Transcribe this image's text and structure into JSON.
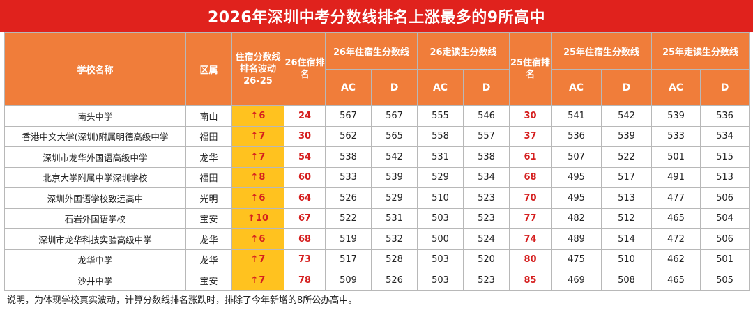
{
  "title": "2026年深圳中考分数线排名上涨最多的9所高中",
  "headers": {
    "school": "学校名称",
    "district": "区属",
    "fluctuation": "住宿分数线排名波动26-25",
    "rank26": "26住宿排名",
    "group26_board": "26年住宿生分数线",
    "group26_day": "26走读生分数线",
    "rank25": "25住宿排名",
    "group25_board": "25年住宿生分数线",
    "group25_day": "25年走读生分数线",
    "ac": "AC",
    "d": "D"
  },
  "arrow": "↑",
  "colors": {
    "title_bg": "#e0221d",
    "header_bg": "#f07d3a",
    "fluct_bg": "#ffc21f",
    "rank_text": "#d51f1f"
  },
  "rows": [
    {
      "school": "南头中学",
      "district": "南山",
      "change": "6",
      "rank26": "24",
      "b26_ac": "567",
      "b26_d": "567",
      "d26_ac": "555",
      "d26_d": "546",
      "rank25": "30",
      "b25_ac": "541",
      "b25_d": "542",
      "d25_ac": "539",
      "d25_d": "536"
    },
    {
      "school": "香港中文大学(深圳)附属明德高级中学",
      "district": "福田",
      "change": "7",
      "rank26": "30",
      "b26_ac": "562",
      "b26_d": "565",
      "d26_ac": "558",
      "d26_d": "557",
      "rank25": "37",
      "b25_ac": "536",
      "b25_d": "539",
      "d25_ac": "533",
      "d25_d": "534"
    },
    {
      "school": "深圳市龙华外国语高级中学",
      "district": "龙华",
      "change": "7",
      "rank26": "54",
      "b26_ac": "538",
      "b26_d": "542",
      "d26_ac": "531",
      "d26_d": "538",
      "rank25": "61",
      "b25_ac": "507",
      "b25_d": "522",
      "d25_ac": "501",
      "d25_d": "515"
    },
    {
      "school": "北京大学附属中学深圳学校",
      "district": "福田",
      "change": "8",
      "rank26": "60",
      "b26_ac": "533",
      "b26_d": "539",
      "d26_ac": "529",
      "d26_d": "534",
      "rank25": "68",
      "b25_ac": "495",
      "b25_d": "517",
      "d25_ac": "491",
      "d25_d": "513"
    },
    {
      "school": "深圳外国语学校致远高中",
      "district": "光明",
      "change": "6",
      "rank26": "64",
      "b26_ac": "526",
      "b26_d": "529",
      "d26_ac": "510",
      "d26_d": "523",
      "rank25": "70",
      "b25_ac": "495",
      "b25_d": "513",
      "d25_ac": "477",
      "d25_d": "506"
    },
    {
      "school": "石岩外国语学校",
      "district": "宝安",
      "change": "10",
      "rank26": "67",
      "b26_ac": "522",
      "b26_d": "531",
      "d26_ac": "503",
      "d26_d": "523",
      "rank25": "77",
      "b25_ac": "482",
      "b25_d": "512",
      "d25_ac": "465",
      "d25_d": "504"
    },
    {
      "school": "深圳市龙华科技实验高级中学",
      "district": "龙华",
      "change": "6",
      "rank26": "68",
      "b26_ac": "519",
      "b26_d": "532",
      "d26_ac": "500",
      "d26_d": "524",
      "rank25": "74",
      "b25_ac": "489",
      "b25_d": "514",
      "d25_ac": "472",
      "d25_d": "506"
    },
    {
      "school": "龙华中学",
      "district": "龙华",
      "change": "7",
      "rank26": "73",
      "b26_ac": "517",
      "b26_d": "528",
      "d26_ac": "503",
      "d26_d": "520",
      "rank25": "80",
      "b25_ac": "475",
      "b25_d": "510",
      "d25_ac": "462",
      "d25_d": "501"
    },
    {
      "school": "沙井中学",
      "district": "宝安",
      "change": "7",
      "rank26": "78",
      "b26_ac": "509",
      "b26_d": "526",
      "d26_ac": "503",
      "d26_d": "523",
      "rank25": "85",
      "b25_ac": "469",
      "b25_d": "508",
      "d25_ac": "465",
      "d25_d": "505"
    }
  ],
  "note": "说明，为体现学校真实波动，计算分数线排名涨跌时，排除了今年新增的8所公办高中。"
}
